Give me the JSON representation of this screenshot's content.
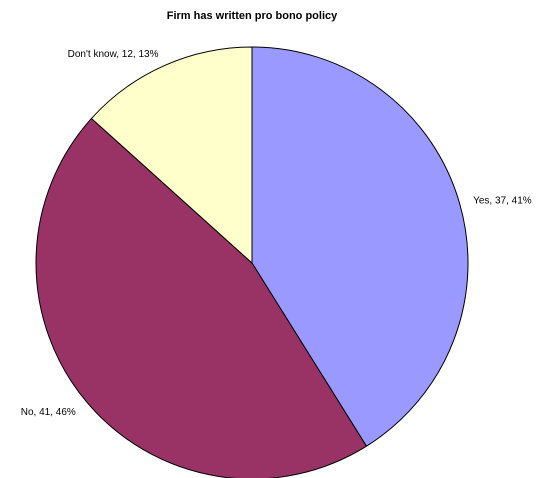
{
  "chart_data": {
    "type": "pie",
    "title": "Firm has written pro bono policy",
    "start_angle_deg": 0,
    "direction": "clockwise",
    "slices": [
      {
        "category": "Yes",
        "value": 37,
        "percent": 41,
        "color": "#9999ff",
        "label": "Yes, 37, 41%",
        "label_side": "right"
      },
      {
        "category": "No",
        "value": 41,
        "percent": 46,
        "color": "#993366",
        "label": "No, 41, 46%",
        "label_side": "left"
      },
      {
        "category": "Don't know",
        "value": 12,
        "percent": 13,
        "color": "#ffffcc",
        "label": "Don't know, 12, 13%",
        "label_side": "left"
      }
    ],
    "edge_color": "#000000",
    "legend": "none"
  }
}
